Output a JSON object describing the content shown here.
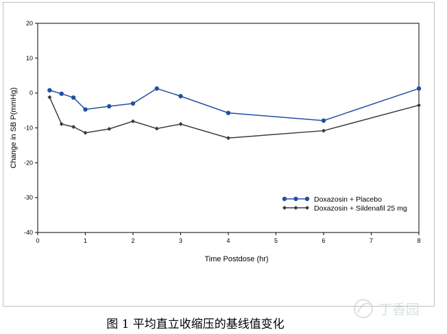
{
  "caption": "图 1 平均直立收缩压的基线值变化",
  "chart_data": {
    "type": "line",
    "title": "",
    "xlabel": "Time Postdose (hr)",
    "ylabel": "Change in SB P(mmHg)",
    "xlim": [
      0,
      8
    ],
    "ylim": [
      -40,
      20
    ],
    "xticks": [
      0,
      1,
      2,
      3,
      4,
      5,
      6,
      7,
      8
    ],
    "yticks": [
      -40,
      -30,
      -20,
      -10,
      0,
      10,
      20
    ],
    "legend_position": "bottom-right",
    "grid": false,
    "series": [
      {
        "name": "Doxazosin + Placebo",
        "color": "#1f4fa3",
        "marker": "circle",
        "x": [
          0.25,
          0.5,
          0.75,
          1,
          1.5,
          2,
          2.5,
          3,
          4,
          6,
          8
        ],
        "y": [
          0.8,
          -0.2,
          -1.3,
          -4.7,
          -3.8,
          -3.0,
          1.3,
          -0.9,
          -5.7,
          -7.9,
          1.3
        ]
      },
      {
        "name": "Doxazosin + Sildenafil 25 mg",
        "color": "#3a3a3a",
        "marker": "diamond",
        "x": [
          0.25,
          0.5,
          0.75,
          1,
          1.5,
          2,
          2.5,
          3,
          4,
          6,
          8
        ],
        "y": [
          -1.2,
          -8.9,
          -9.7,
          -11.4,
          -10.3,
          -8.1,
          -10.2,
          -8.9,
          -12.9,
          -10.8,
          -3.5
        ]
      }
    ]
  },
  "watermark": {
    "text": "丁香园"
  }
}
